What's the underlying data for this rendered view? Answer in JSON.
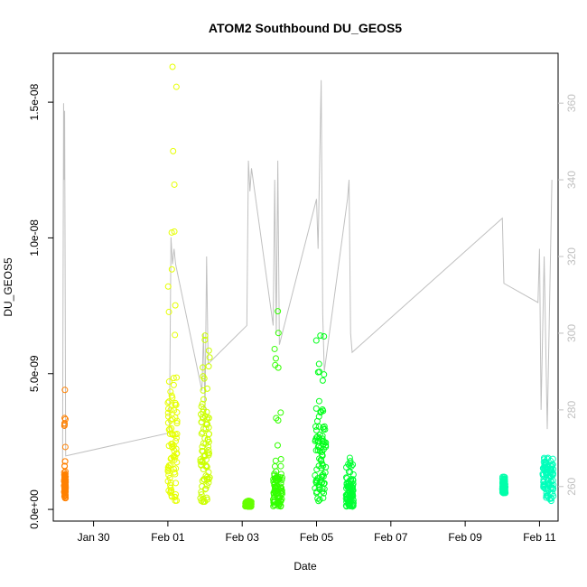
{
  "chart_data": {
    "type": "scatter",
    "title": "ATOM2 Southbound DU_GEOS5",
    "xlabel": "Date",
    "ylabel": "DU_GEOS5",
    "x_ticks": [
      "Jan 30",
      "Feb 01",
      "Feb 03",
      "Feb 05",
      "Feb 07",
      "Feb 09",
      "Feb 11"
    ],
    "y_ticks": [
      "0.0e+00",
      "5.0e-09",
      "1.0e-08",
      "1.5e-08"
    ],
    "y_tick_values": [
      0,
      5e-09,
      1e-08,
      1.5e-08
    ],
    "y_right_ticks": [
      "260",
      "280",
      "300",
      "320",
      "340",
      "360"
    ],
    "y_right_tick_values": [
      260,
      280,
      300,
      320,
      340,
      360
    ],
    "xlim": [
      "2016-01-28T22:00",
      "2016-02-11T12:00"
    ],
    "ylim": [
      -4.3e-10,
      1.68e-08
    ],
    "y_right_lim": [
      251,
      373
    ],
    "line_color": "#c0c0c0",
    "point_style": "open-circle",
    "scatter_clusters": [
      {
        "x_start": "2016-01-29T05:00",
        "x_end": "2016-01-29T06:00",
        "y_min": 4e-10,
        "y_dense_max": 1.3e-09,
        "y_max": 4.4e-09,
        "color": "#ff8000"
      },
      {
        "x_start": "2016-02-01T00:00",
        "x_end": "2016-02-01T06:00",
        "y_min": 3e-10,
        "y_dense_max": 4e-09,
        "y_max": 1.63e-08,
        "color": "#e6ff00"
      },
      {
        "x_start": "2016-02-01T21:00",
        "x_end": "2016-02-02T03:00",
        "y_min": 2e-10,
        "y_dense_max": 3.5e-09,
        "y_max": 6.4e-09,
        "color": "#ccff00"
      },
      {
        "x_start": "2016-02-03T02:00",
        "x_end": "2016-02-03T06:00",
        "y_min": 1e-10,
        "y_dense_max": 2.5e-10,
        "y_max": 3.2e-10,
        "color": "#66ff00"
      },
      {
        "x_start": "2016-02-03T20:00",
        "x_end": "2016-02-04T02:00",
        "y_min": 1e-10,
        "y_dense_max": 1.2e-09,
        "y_max": 7.3e-09,
        "color": "#33ff00"
      },
      {
        "x_start": "2016-02-04T23:00",
        "x_end": "2016-02-05T06:00",
        "y_min": 3e-10,
        "y_dense_max": 3e-09,
        "y_max": 6.4e-09,
        "color": "#00ff1a"
      },
      {
        "x_start": "2016-02-05T19:00",
        "x_end": "2016-02-06T00:00",
        "y_min": 1e-10,
        "y_dense_max": 1e-09,
        "y_max": 1.9e-09,
        "color": "#00ff33"
      },
      {
        "x_start": "2016-02-10T00:00",
        "x_end": "2016-02-10T02:00",
        "y_min": 6e-10,
        "y_dense_max": 1e-09,
        "y_max": 1.2e-09,
        "color": "#00ffaa"
      },
      {
        "x_start": "2016-02-11T02:00",
        "x_end": "2016-02-11T09:00",
        "y_min": 3e-10,
        "y_dense_max": 1.5e-09,
        "y_max": 1.9e-09,
        "color": "#00ffbb"
      }
    ],
    "line_series": {
      "right_axis": true,
      "x": [
        "2016-01-29T04:00",
        "2016-01-29T04:40",
        "2016-01-29T05:00",
        "2016-01-29T05:20",
        "2016-01-29T06:00",
        "2016-02-01T01:00",
        "2016-02-01T02:00",
        "2016-02-01T03:00",
        "2016-02-01T04:00",
        "2016-02-01T05:00",
        "2016-02-01T22:00",
        "2016-02-01T23:00",
        "2016-02-02T00:00",
        "2016-02-02T01:00",
        "2016-02-02T02:00",
        "2016-02-03T03:00",
        "2016-02-03T04:00",
        "2016-02-03T05:00",
        "2016-02-03T06:00",
        "2016-02-03T20:00",
        "2016-02-03T21:00",
        "2016-02-03T22:00",
        "2016-02-03T23:00",
        "2016-02-04T00:00",
        "2016-02-05T00:00",
        "2016-02-05T01:00",
        "2016-02-05T03:00",
        "2016-02-05T04:00",
        "2016-02-05T05:00",
        "2016-02-05T20:00",
        "2016-02-05T21:00",
        "2016-02-05T22:00",
        "2016-02-05T23:00",
        "2016-02-10T00:00",
        "2016-02-10T01:00",
        "2016-02-10T23:00",
        "2016-02-11T00:00",
        "2016-02-11T01:00",
        "2016-02-11T03:00",
        "2016-02-11T05:00",
        "2016-02-11T08:00"
      ],
      "y": [
        266,
        360,
        340,
        358,
        268,
        274,
        325,
        318,
        322,
        318,
        285,
        300,
        280,
        320,
        292,
        302,
        345,
        337,
        343,
        302,
        340,
        300,
        345,
        297,
        335,
        322,
        366,
        305,
        290,
        335,
        340,
        300,
        295,
        330,
        313,
        308,
        322,
        280,
        320,
        275,
        340
      ]
    }
  }
}
